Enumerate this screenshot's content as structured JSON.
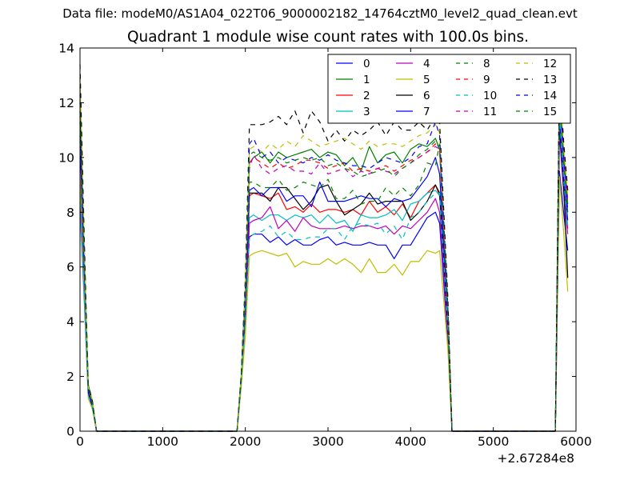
{
  "suptitle": "Data file: modeM0/AS1A04_022T06_9000002182_14764cztM0_level2_quad_clean.evt",
  "title": "Quadrant 1 module wise count rates with 100.0s bins.",
  "chart_data": {
    "type": "line",
    "title": "Quadrant 1 module wise count rates with 100.0s bins.",
    "xlabel": "",
    "ylabel": "",
    "xlim": [
      0,
      6000
    ],
    "ylim": [
      0,
      14
    ],
    "x_offset_label": "+2.67284e8",
    "xticks": [
      0,
      1000,
      2000,
      3000,
      4000,
      5000,
      6000
    ],
    "yticks": [
      0,
      2,
      4,
      6,
      8,
      10,
      12,
      14
    ],
    "grid": false,
    "legend": {
      "placement": "top-right",
      "columns": 4
    },
    "x": [
      0,
      50,
      100,
      150,
      200,
      250,
      1900,
      1950,
      2000,
      2050,
      2100,
      2200,
      2300,
      2400,
      2500,
      2600,
      2700,
      2800,
      2900,
      3000,
      3100,
      3200,
      3300,
      3400,
      3500,
      3600,
      3700,
      3800,
      3900,
      4000,
      4100,
      4200,
      4300,
      4350,
      4450,
      4500,
      4550,
      5750,
      5800,
      5850,
      5900
    ],
    "series": [
      {
        "name": "0",
        "color": "#0000ff",
        "dash": "solid",
        "values": [
          12.3,
          6.0,
          1.6,
          1.0,
          0,
          0,
          0,
          1.8,
          4.5,
          7.1,
          7.2,
          7.2,
          6.9,
          7.1,
          6.8,
          7.0,
          6.8,
          6.8,
          7.0,
          7.1,
          6.8,
          6.9,
          6.8,
          6.8,
          6.9,
          6.8,
          6.8,
          6.3,
          6.8,
          6.8,
          7.3,
          7.8,
          8.0,
          7.6,
          3.3,
          0,
          0,
          0,
          9.5,
          8.0,
          6.6
        ]
      },
      {
        "name": "1",
        "color": "#008000",
        "dash": "solid",
        "values": [
          12.6,
          6.8,
          1.7,
          1.1,
          0,
          0,
          0,
          2.0,
          5.3,
          9.8,
          10.0,
          10.2,
          9.8,
          10.2,
          10.0,
          10.1,
          10.2,
          10.3,
          10.0,
          10.2,
          10.1,
          9.7,
          10.0,
          9.5,
          10.4,
          9.8,
          10.1,
          10.2,
          9.8,
          10.3,
          10.5,
          10.4,
          10.7,
          10.3,
          4.5,
          0,
          0,
          0,
          12.7,
          10.2,
          8.3
        ]
      },
      {
        "name": "2",
        "color": "#ff0000",
        "dash": "solid",
        "values": [
          10.6,
          5.8,
          1.4,
          0.9,
          0,
          0,
          0,
          1.9,
          4.8,
          8.6,
          8.7,
          8.6,
          8.5,
          8.7,
          8.1,
          8.2,
          8.0,
          8.3,
          8.0,
          8.1,
          8.1,
          8.0,
          8.1,
          7.9,
          8.4,
          8.0,
          8.2,
          7.9,
          8.3,
          7.8,
          8.4,
          8.7,
          9.0,
          8.6,
          3.8,
          0,
          0,
          0,
          11.0,
          8.9,
          7.4
        ]
      },
      {
        "name": "3",
        "color": "#00bfbf",
        "dash": "solid",
        "values": [
          8.2,
          4.8,
          1.3,
          0.9,
          0,
          0,
          0,
          1.8,
          4.0,
          7.8,
          7.9,
          7.7,
          7.9,
          7.9,
          7.7,
          7.9,
          7.8,
          7.9,
          7.6,
          7.9,
          7.6,
          7.7,
          7.3,
          7.9,
          7.8,
          7.8,
          7.9,
          8.1,
          7.7,
          8.3,
          8.4,
          8.7,
          8.8,
          8.6,
          3.8,
          0,
          0,
          0,
          11.5,
          9.2,
          7.5
        ]
      },
      {
        "name": "4",
        "color": "#bf00bf",
        "dash": "solid",
        "values": [
          8.7,
          5.0,
          1.3,
          0.9,
          0,
          0,
          0,
          1.8,
          4.2,
          7.6,
          7.7,
          7.8,
          8.2,
          7.4,
          7.7,
          7.3,
          7.8,
          7.5,
          7.4,
          7.4,
          7.4,
          7.5,
          7.4,
          7.5,
          7.5,
          7.4,
          7.5,
          7.2,
          7.5,
          7.4,
          7.7,
          8.0,
          8.5,
          8.0,
          3.5,
          0,
          0,
          0,
          10.9,
          8.7,
          7.2
        ]
      },
      {
        "name": "5",
        "color": "#bfbf00",
        "dash": "solid",
        "values": [
          9.5,
          5.2,
          1.2,
          0.8,
          0,
          0,
          0,
          1.6,
          3.5,
          6.4,
          6.5,
          6.6,
          6.5,
          6.4,
          6.5,
          6.0,
          6.2,
          6.1,
          6.1,
          6.3,
          6.1,
          6.3,
          6.1,
          5.8,
          6.3,
          5.8,
          5.8,
          6.1,
          5.7,
          6.2,
          6.2,
          6.6,
          6.5,
          6.6,
          3.0,
          0,
          0,
          0,
          9.3,
          7.3,
          5.1
        ]
      },
      {
        "name": "6",
        "color": "#000000",
        "dash": "solid",
        "values": [
          11.5,
          6.3,
          1.5,
          1.0,
          0,
          0,
          0,
          1.9,
          4.6,
          8.7,
          8.7,
          8.7,
          8.4,
          8.9,
          8.9,
          8.5,
          8.1,
          8.4,
          8.9,
          9.0,
          8.4,
          7.9,
          8.1,
          8.3,
          8.7,
          8.3,
          8.4,
          8.4,
          8.4,
          7.7,
          8.0,
          8.4,
          9.0,
          8.7,
          3.9,
          0,
          0,
          0,
          11.2,
          9.0,
          5.6
        ]
      },
      {
        "name": "7",
        "color": "#0000ff",
        "dash": "solid",
        "values": [
          10.8,
          5.9,
          1.4,
          0.9,
          0,
          0,
          0,
          1.9,
          4.7,
          8.8,
          8.9,
          8.6,
          8.9,
          8.9,
          8.4,
          8.6,
          8.6,
          8.2,
          9.1,
          8.4,
          8.4,
          8.4,
          8.5,
          8.6,
          8.5,
          8.5,
          8.2,
          8.5,
          8.4,
          8.5,
          8.9,
          9.3,
          10.0,
          9.4,
          4.1,
          0,
          0,
          0,
          11.4,
          9.3,
          7.7
        ]
      },
      {
        "name": "8",
        "color": "#008000",
        "dash": "dashed",
        "values": [
          12.1,
          6.6,
          1.6,
          1.0,
          0,
          0,
          0,
          2.0,
          5.0,
          9.1,
          9.1,
          8.9,
          8.9,
          9.2,
          8.8,
          8.9,
          9.1,
          9.0,
          8.9,
          9.2,
          8.5,
          8.5,
          8.8,
          8.3,
          8.4,
          8.4,
          8.9,
          8.6,
          8.9,
          8.6,
          9.0,
          9.8,
          9.7,
          10.5,
          4.4,
          0,
          0,
          0,
          12.6,
          10.1,
          8.5
        ]
      },
      {
        "name": "9",
        "color": "#ff0000",
        "dash": "dashed",
        "values": [
          11.3,
          6.2,
          1.5,
          1.0,
          0,
          0,
          0,
          2.0,
          5.0,
          9.8,
          10.0,
          9.8,
          9.6,
          9.8,
          9.6,
          9.7,
          9.9,
          9.9,
          9.8,
          9.6,
          9.7,
          9.8,
          9.5,
          9.6,
          9.5,
          9.6,
          9.7,
          9.5,
          9.7,
          9.9,
          10.0,
          10.2,
          10.5,
          10.3,
          4.5,
          0,
          0,
          0,
          12.5,
          10.1,
          8.4
        ]
      },
      {
        "name": "10",
        "color": "#00bfbf",
        "dash": "dashed",
        "values": [
          9.0,
          5.1,
          1.3,
          0.9,
          0,
          0,
          0,
          1.8,
          4.0,
          7.1,
          7.2,
          7.3,
          7.5,
          7.1,
          7.3,
          7.0,
          7.0,
          7.1,
          7.1,
          7.4,
          7.4,
          7.0,
          7.5,
          7.6,
          7.5,
          7.6,
          7.2,
          7.5,
          7.0,
          7.8,
          8.0,
          8.4,
          8.7,
          8.7,
          3.8,
          0,
          0,
          0,
          11.6,
          9.2,
          7.4
        ]
      },
      {
        "name": "11",
        "color": "#bf00bf",
        "dash": "dashed",
        "values": [
          11.3,
          6.1,
          1.5,
          1.0,
          0,
          0,
          0,
          2.0,
          5.0,
          9.6,
          10.1,
          9.6,
          9.4,
          9.6,
          9.7,
          9.5,
          9.5,
          9.4,
          9.8,
          9.4,
          9.5,
          9.6,
          9.3,
          9.5,
          9.4,
          9.6,
          9.5,
          9.4,
          9.6,
          9.8,
          10.0,
          10.2,
          10.4,
          10.3,
          4.5,
          0,
          0,
          0,
          12.4,
          10.0,
          8.3
        ]
      },
      {
        "name": "12",
        "color": "#bfbf00",
        "dash": "dashed",
        "values": [
          12.9,
          6.9,
          1.6,
          1.1,
          0,
          0,
          0,
          2.0,
          5.2,
          10.3,
          10.4,
          10.2,
          10.5,
          10.3,
          10.6,
          10.4,
          10.8,
          10.6,
          10.4,
          10.5,
          10.6,
          10.7,
          10.5,
          10.3,
          10.6,
          10.4,
          10.5,
          10.5,
          10.4,
          10.6,
          10.8,
          10.9,
          11.2,
          10.9,
          4.7,
          0,
          0,
          0,
          12.8,
          10.4,
          8.6
        ]
      },
      {
        "name": "13",
        "color": "#000000",
        "dash": "dashed",
        "values": [
          13.4,
          7.2,
          1.7,
          1.1,
          0,
          0,
          0,
          2.1,
          5.6,
          11.2,
          11.2,
          11.2,
          11.3,
          11.5,
          11.2,
          11.7,
          10.9,
          11.7,
          11.3,
          10.6,
          11.0,
          10.6,
          11.0,
          10.8,
          11.0,
          11.3,
          10.8,
          11.3,
          11.0,
          11.0,
          11.3,
          11.0,
          11.5,
          11.3,
          4.9,
          0,
          0,
          0,
          13.2,
          10.6,
          8.8
        ]
      },
      {
        "name": "14",
        "color": "#0000ff",
        "dash": "dashed",
        "values": [
          11.7,
          6.3,
          1.5,
          1.0,
          0,
          0,
          0,
          2.0,
          5.2,
          10.5,
          10.7,
          10.0,
          10.2,
          9.8,
          10.0,
          9.9,
          9.8,
          10.0,
          9.9,
          10.1,
          9.9,
          9.8,
          9.7,
          9.7,
          9.6,
          9.8,
          10.0,
          9.9,
          9.8,
          10.0,
          10.4,
          10.5,
          11.3,
          10.8,
          4.6,
          0,
          0,
          0,
          12.3,
          9.9,
          8.1
        ]
      },
      {
        "name": "15",
        "color": "#008000",
        "dash": "dashed",
        "values": [
          12.0,
          6.5,
          1.6,
          1.0,
          0,
          0,
          0,
          2.0,
          5.1,
          10.1,
          10.2,
          10.0,
          9.9,
          10.0,
          9.8,
          9.9,
          10.0,
          9.9,
          10.0,
          9.7,
          9.8,
          9.6,
          9.5,
          9.3,
          9.4,
          9.5,
          9.6,
          9.3,
          9.6,
          9.8,
          10.1,
          10.3,
          10.6,
          10.3,
          4.4,
          0,
          0,
          0,
          12.2,
          9.8,
          8.0
        ]
      }
    ]
  }
}
